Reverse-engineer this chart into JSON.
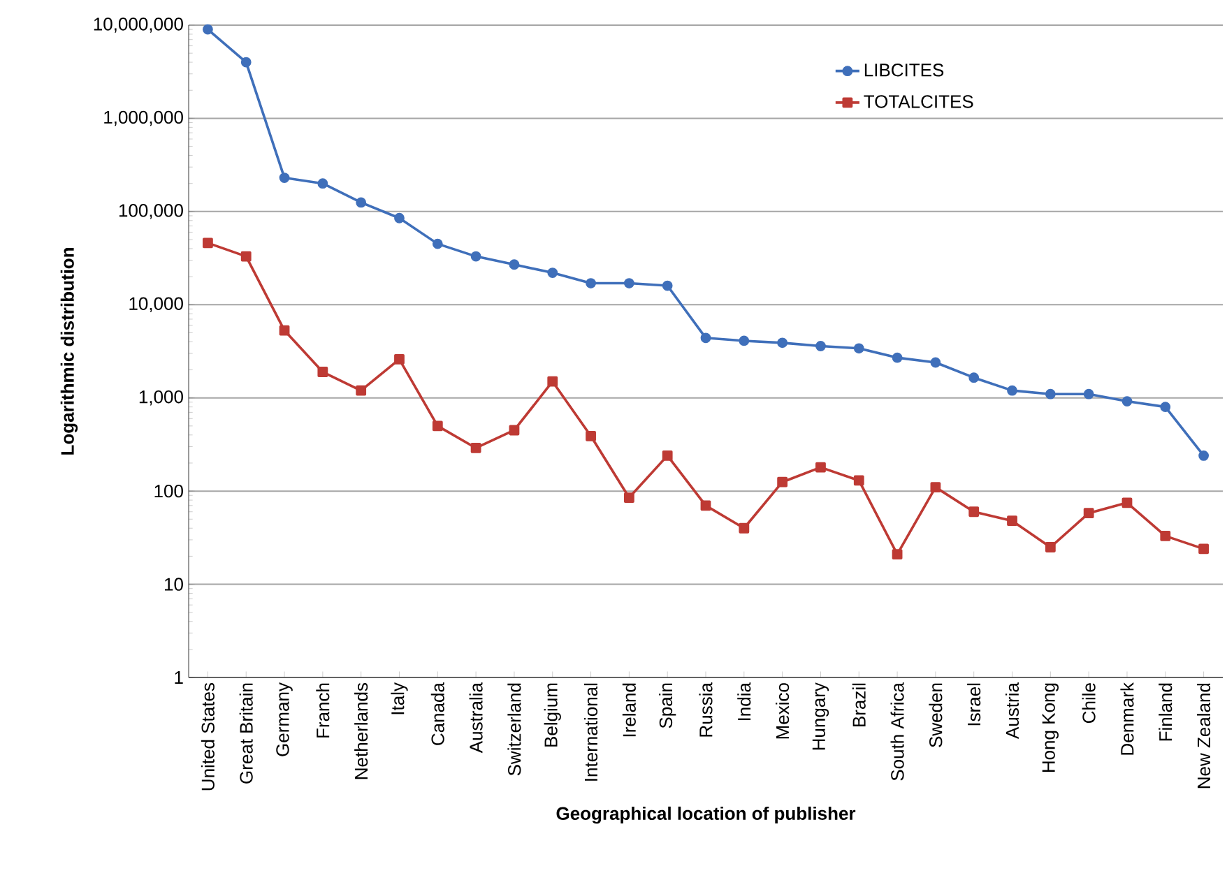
{
  "chart_data": {
    "type": "line",
    "xlabel": "Geographical location of publisher",
    "ylabel": "Logarithmic distribution",
    "categories": [
      "United States",
      "Great Britain",
      "Germany",
      "Franch",
      "Netherlands",
      "Italy",
      "Canada",
      "Australia",
      "Switzerland",
      "Belgium",
      "International",
      "Ireland",
      "Spain",
      "Russia",
      "India",
      "Mexico",
      "Hungary",
      "Brazil",
      "South Africa",
      "Sweden",
      "Israel",
      "Austria",
      "Hong Kong",
      "Chile",
      "Denmark",
      "Finland",
      "New Zealand"
    ],
    "series": [
      {
        "name": "LIBCITES",
        "color": "#3f6fba",
        "marker": "circle",
        "values": [
          9000000,
          4000000,
          230000,
          200000,
          125000,
          85000,
          45000,
          33000,
          27000,
          22000,
          17000,
          17000,
          16000,
          4400,
          4100,
          3900,
          3600,
          3400,
          2700,
          2400,
          1650,
          1200,
          1100,
          1100,
          920,
          800,
          240
        ]
      },
      {
        "name": "TOTALCITES",
        "color": "#be3a34",
        "marker": "square",
        "values": [
          46000,
          33000,
          5300,
          1900,
          1200,
          2600,
          500,
          290,
          450,
          1500,
          390,
          85,
          240,
          70,
          40,
          125,
          180,
          130,
          21,
          110,
          60,
          48,
          25,
          58,
          75,
          33,
          24
        ]
      }
    ],
    "log": "y",
    "ylim": [
      1,
      10000000
    ],
    "yticks": [
      1,
      10,
      100,
      {
        "value": 1000,
        "label": "1,000"
      },
      {
        "value": 10000,
        "label": "10,000"
      },
      {
        "value": 100000,
        "label": "100,000"
      },
      {
        "value": 1000000,
        "label": "1,000,000"
      },
      {
        "value": 10000000,
        "label": "10,000,000"
      }
    ],
    "grid": "y",
    "legend": "top right",
    "line_style": "solid"
  }
}
